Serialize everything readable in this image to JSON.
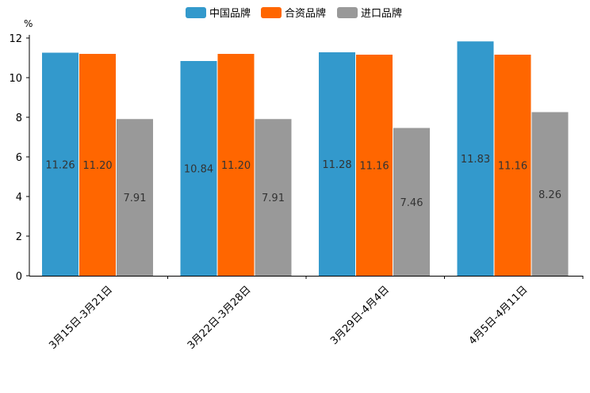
{
  "chart_data": {
    "type": "bar",
    "unit": "%",
    "categories": [
      "3月15日-3月21日",
      "3月22日-3月28日",
      "3月29日-4月4日",
      "4月5日-4月11日"
    ],
    "series": [
      {
        "name": "中国品牌",
        "color": "#3399cc",
        "values": [
          11.26,
          10.84,
          11.28,
          11.83
        ],
        "labels": [
          "11.26",
          "10.84",
          "11.28",
          "11.83"
        ]
      },
      {
        "name": "合资品牌",
        "color": "#ff6600",
        "values": [
          11.2,
          11.2,
          11.16,
          11.16
        ],
        "labels": [
          "11.20",
          "11.20",
          "11.16",
          "11.16"
        ]
      },
      {
        "name": "进口品牌",
        "color": "#999999",
        "values": [
          7.91,
          7.91,
          7.46,
          8.26
        ],
        "labels": [
          "7.91",
          "7.91",
          "7.46",
          "8.26"
        ]
      }
    ],
    "yticks": [
      "0",
      "2",
      "4",
      "6",
      "8",
      "10",
      "12"
    ],
    "ylim": [
      0,
      12
    ],
    "legend_position": "top-center",
    "grid": false
  }
}
